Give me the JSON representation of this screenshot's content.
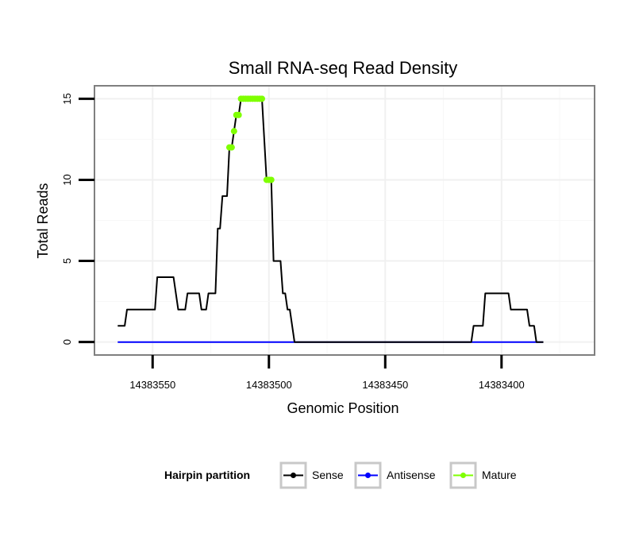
{
  "chart_data": {
    "type": "line",
    "title": "Small RNA-seq Read Density",
    "xlabel": "Genomic Position",
    "ylabel": "Total Reads",
    "xlim": [
      14383575,
      14383360
    ],
    "ylim": [
      -0.8,
      15.8
    ],
    "x_reversed": true,
    "xticks": [
      14383550,
      14383500,
      14383450,
      14383400
    ],
    "xtick_labels": [
      "14383550",
      "14383500",
      "14383450",
      "14383400"
    ],
    "yticks": [
      0,
      5,
      10,
      15
    ],
    "ytick_labels": [
      "0",
      "5",
      "10",
      "15"
    ],
    "grid": true,
    "legend": {
      "title": "Hairpin partition",
      "position": "bottom",
      "entries": [
        "Sense",
        "Antisense",
        "Mature"
      ]
    },
    "series": [
      {
        "name": "Sense",
        "color": "#000000",
        "points": [
          [
            14383565,
            1
          ],
          [
            14383562,
            1
          ],
          [
            14383561,
            2
          ],
          [
            14383549,
            2
          ],
          [
            14383548,
            4
          ],
          [
            14383541,
            4
          ],
          [
            14383539,
            2
          ],
          [
            14383536,
            2
          ],
          [
            14383535,
            3
          ],
          [
            14383530,
            3
          ],
          [
            14383529,
            2
          ],
          [
            14383527,
            2
          ],
          [
            14383526,
            3
          ],
          [
            14383523,
            3
          ],
          [
            14383522,
            7
          ],
          [
            14383521,
            7
          ],
          [
            14383520,
            9
          ],
          [
            14383518,
            9
          ],
          [
            14383517,
            12
          ],
          [
            14383516,
            12
          ],
          [
            14383515,
            13
          ],
          [
            14383514,
            14
          ],
          [
            14383513,
            14
          ],
          [
            14383512,
            15
          ],
          [
            14383503,
            15
          ],
          [
            14383501,
            10
          ],
          [
            14383499,
            10
          ],
          [
            14383498,
            5
          ],
          [
            14383495,
            5
          ],
          [
            14383494,
            3
          ],
          [
            14383493,
            3
          ],
          [
            14383492,
            2
          ],
          [
            14383491,
            2
          ],
          [
            14383489,
            0
          ],
          [
            14383413,
            0
          ],
          [
            14383412,
            1
          ],
          [
            14383408,
            1
          ],
          [
            14383407,
            3
          ],
          [
            14383397,
            3
          ],
          [
            14383396,
            2
          ],
          [
            14383389,
            2
          ],
          [
            14383388,
            1
          ],
          [
            14383386,
            1
          ],
          [
            14383385,
            0
          ],
          [
            14383382,
            0
          ]
        ]
      },
      {
        "name": "Antisense",
        "color": "#0000ff",
        "points": [
          [
            14383565,
            0
          ],
          [
            14383382,
            0
          ]
        ]
      },
      {
        "name": "Mature",
        "color": "#7fff00",
        "points": [
          [
            14383517,
            12
          ],
          [
            14383516,
            12
          ],
          [
            14383515,
            13
          ],
          [
            14383514,
            14
          ],
          [
            14383513,
            14
          ],
          [
            14383512,
            15
          ],
          [
            14383511,
            15
          ],
          [
            14383510,
            15
          ],
          [
            14383509,
            15
          ],
          [
            14383508,
            15
          ],
          [
            14383507,
            15
          ],
          [
            14383506,
            15
          ],
          [
            14383505,
            15
          ],
          [
            14383504,
            15
          ],
          [
            14383503,
            15
          ],
          [
            14383501,
            10
          ],
          [
            14383500,
            10
          ],
          [
            14383499,
            10
          ]
        ]
      }
    ]
  }
}
